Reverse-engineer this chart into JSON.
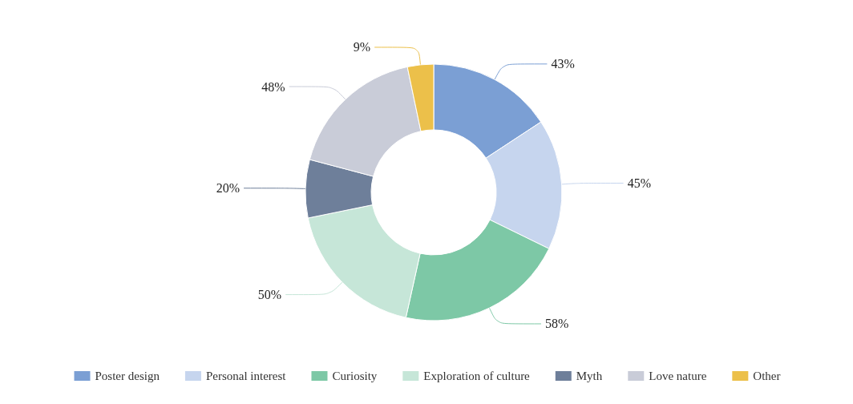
{
  "chart_data": {
    "type": "donut",
    "categories": [
      "Poster design",
      "Personal interest",
      "Curiosity",
      "Exploration of culture",
      "Myth",
      "Love nature",
      "Other"
    ],
    "values": [
      43,
      45,
      58,
      50,
      20,
      48,
      9
    ],
    "value_labels": [
      "43%",
      "45%",
      "58%",
      "50%",
      "20%",
      "48%",
      "9%"
    ],
    "colors": [
      "#7b9fd4",
      "#c6d5ee",
      "#7dc8a6",
      "#c6e6d8",
      "#6e7f9a",
      "#c9ccd8",
      "#ecc04a"
    ],
    "legend": "bottom"
  }
}
